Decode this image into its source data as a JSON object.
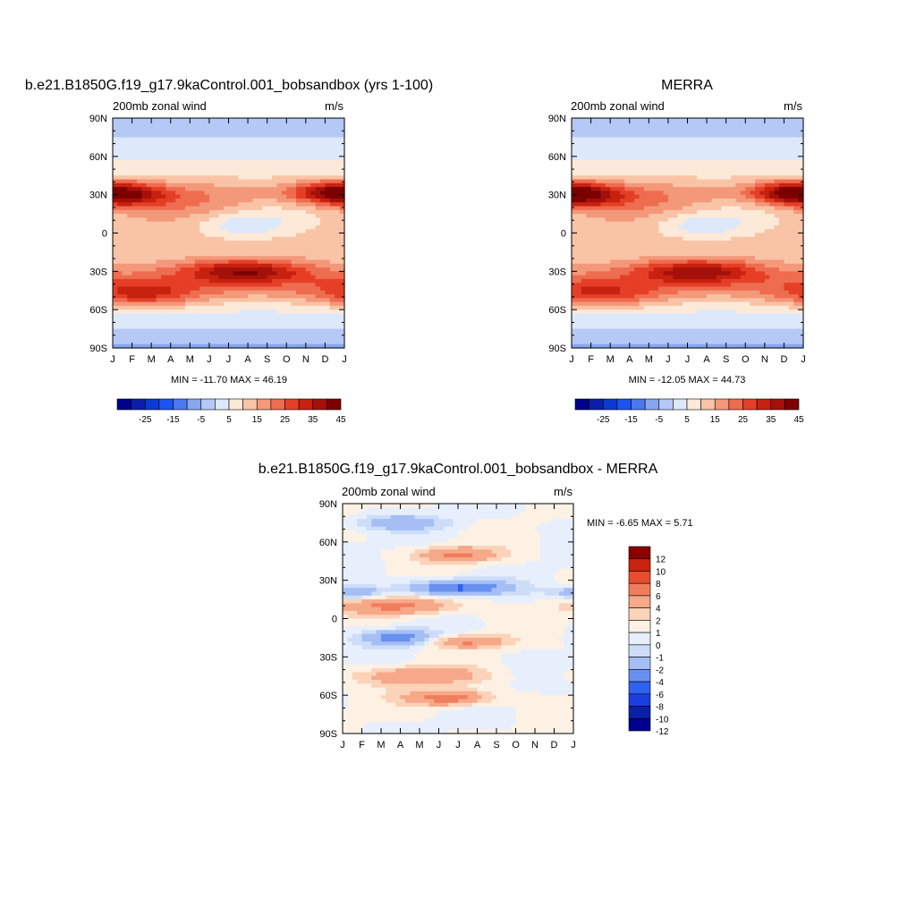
{
  "chart_data": [
    {
      "type": "heatmap",
      "title": "b.e21.B1850G.f19_g17.9kaControl.001_bobsandbox (yrs 1-100)",
      "subtitle_left": "200mb zonal wind",
      "subtitle_right": "m/s",
      "x_ticks": [
        "J",
        "F",
        "M",
        "A",
        "M",
        "J",
        "J",
        "A",
        "S",
        "O",
        "N",
        "D",
        "J"
      ],
      "y_ticks": [
        "90N",
        "60N",
        "30N",
        "0",
        "30S",
        "60S",
        "90S"
      ],
      "y_tick_values": [
        90,
        60,
        30,
        0,
        -30,
        -60,
        -90
      ],
      "stats": "MIN = -11.70 MAX =  46.19",
      "min": -11.7,
      "max": 46.19,
      "colorbar_labels": [
        "-25",
        "-15",
        "-5",
        "5",
        "15",
        "25",
        "35",
        "45"
      ],
      "levels": [
        -30,
        -25,
        -20,
        -15,
        -10,
        -5,
        0,
        5,
        10,
        15,
        20,
        25,
        30,
        35,
        40,
        45
      ],
      "features": [
        {
          "lat": 30,
          "month": 0.5,
          "value": 40,
          "width_lat": 9,
          "width_month": 2.2
        },
        {
          "lat": 32,
          "month": 11.3,
          "value": 37,
          "width_lat": 8,
          "width_month": 2.0
        },
        {
          "lat": -30,
          "month": 6.8,
          "value": 46,
          "width_lat": 9,
          "width_month": 3.2
        },
        {
          "lat": -48,
          "month": 1.5,
          "value": 34,
          "width_lat": 10,
          "width_month": 3.0
        },
        {
          "lat": 6,
          "month": 6.8,
          "value": -11.7,
          "width_lat": 9,
          "width_month": 2.3
        },
        {
          "lat": 82,
          "month": 6,
          "value": 0,
          "width_lat": 7,
          "width_month": 20
        }
      ]
    },
    {
      "type": "heatmap",
      "title": "MERRA",
      "subtitle_left": "200mb zonal wind",
      "subtitle_right": "m/s",
      "x_ticks": [
        "J",
        "F",
        "M",
        "A",
        "M",
        "J",
        "J",
        "A",
        "S",
        "O",
        "N",
        "D",
        "J"
      ],
      "y_ticks": [
        "90N",
        "60N",
        "30N",
        "0",
        "30S",
        "60S",
        "90S"
      ],
      "y_tick_values": [
        90,
        60,
        30,
        0,
        -30,
        -60,
        -90
      ],
      "stats": "MIN = -12.05 MAX =  44.73",
      "min": -12.05,
      "max": 44.73,
      "colorbar_labels": [
        "-25",
        "-15",
        "-5",
        "5",
        "15",
        "25",
        "35",
        "45"
      ],
      "levels": [
        -30,
        -25,
        -20,
        -15,
        -10,
        -5,
        0,
        5,
        10,
        15,
        20,
        25,
        30,
        35,
        40,
        45
      ],
      "features": [
        {
          "lat": 30,
          "month": 0.5,
          "value": 42,
          "width_lat": 9,
          "width_month": 2.2
        },
        {
          "lat": 32,
          "month": 11.3,
          "value": 40,
          "width_lat": 8,
          "width_month": 2.0
        },
        {
          "lat": -30,
          "month": 6.5,
          "value": 44.7,
          "width_lat": 9,
          "width_month": 3.2
        },
        {
          "lat": -48,
          "month": 1.5,
          "value": 32,
          "width_lat": 10,
          "width_month": 3.0
        },
        {
          "lat": 6,
          "month": 6.8,
          "value": -12.05,
          "width_lat": 9,
          "width_month": 2.3
        },
        {
          "lat": 82,
          "month": 6,
          "value": 0,
          "width_lat": 7,
          "width_month": 20
        }
      ]
    },
    {
      "type": "heatmap",
      "title": "b.e21.B1850G.f19_g17.9kaControl.001_bobsandbox - MERRA",
      "subtitle_left": "200mb zonal wind",
      "subtitle_right": "m/s",
      "x_ticks": [
        "J",
        "F",
        "M",
        "A",
        "M",
        "J",
        "J",
        "A",
        "S",
        "O",
        "N",
        "D",
        "J"
      ],
      "y_ticks": [
        "90N",
        "60N",
        "30N",
        "0",
        "30S",
        "60S",
        "90S"
      ],
      "y_tick_values": [
        90,
        60,
        30,
        0,
        -30,
        -60,
        -90
      ],
      "stats": "MIN =  -6.65 MAX =   5.71",
      "min": -6.65,
      "max": 5.71,
      "colorbar_labels": [
        "12",
        "10",
        "8",
        "6",
        "4",
        "2",
        "1",
        "0",
        "-1",
        "-2",
        "-4",
        "-6",
        "-8",
        "-10",
        "-12"
      ],
      "levels": [
        -12,
        -10,
        -8,
        -6,
        -4,
        -2,
        -1,
        0,
        1,
        2,
        4,
        6,
        8,
        10,
        12
      ],
      "features": [
        {
          "lat": 24,
          "month": 6,
          "value": -6.65,
          "width_lat": 6,
          "width_month": 2.5
        },
        {
          "lat": 20,
          "month": 0.5,
          "value": -4.5,
          "width_lat": 5,
          "width_month": 1.5
        },
        {
          "lat": -15,
          "month": 3.0,
          "value": -5,
          "width_lat": 6,
          "width_month": 2.0
        },
        {
          "lat": 10,
          "month": 3.0,
          "value": 4.5,
          "width_lat": 7,
          "width_month": 3.0
        },
        {
          "lat": -18,
          "month": 6.5,
          "value": 4.5,
          "width_lat": 5,
          "width_month": 2.0
        },
        {
          "lat": -45,
          "month": 4.0,
          "value": 4.0,
          "width_lat": 7,
          "width_month": 3.0
        },
        {
          "lat": -62,
          "month": 5.5,
          "value": 5.71,
          "width_lat": 6,
          "width_month": 2.0
        },
        {
          "lat": 50,
          "month": 6.0,
          "value": 4.5,
          "width_lat": 6,
          "width_month": 2.0
        },
        {
          "lat": 75,
          "month": 3.0,
          "value": -3.0,
          "width_lat": 6,
          "width_month": 2.5
        }
      ]
    }
  ]
}
